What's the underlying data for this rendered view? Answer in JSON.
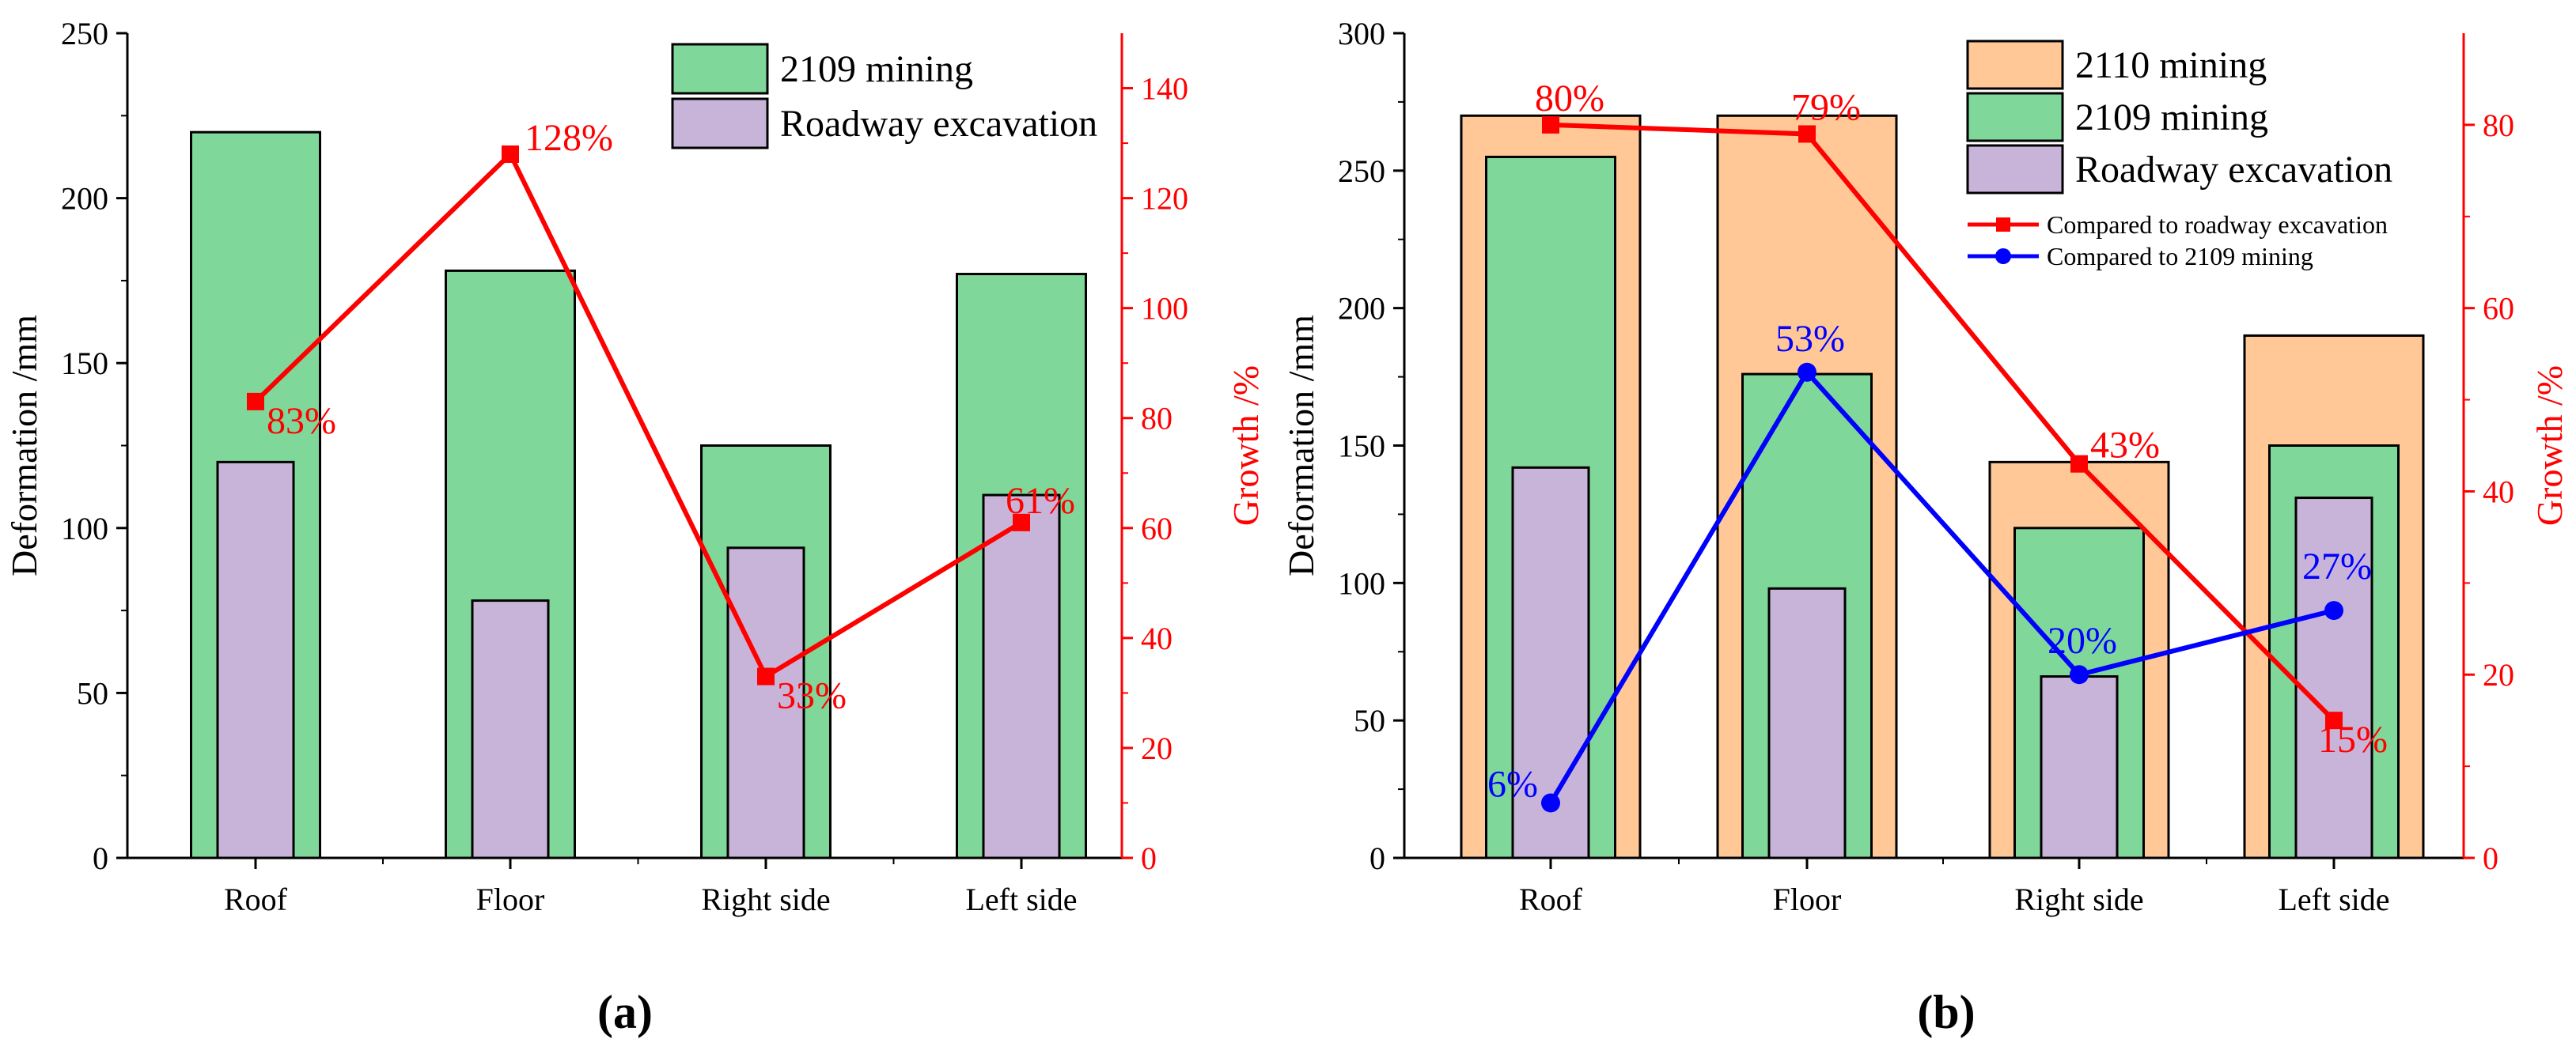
{
  "chart_data": [
    {
      "type": "bar",
      "panel_label": "(a)",
      "categories": [
        "Roof",
        "Floor",
        "Right side",
        "Left side"
      ],
      "ylabel": "Deformation /mm",
      "y2label": "Growth /%",
      "ylim": [
        0,
        250
      ],
      "y2lim": [
        0,
        150
      ],
      "yticks": [
        0,
        50,
        100,
        150,
        200,
        250
      ],
      "y2ticks": [
        0,
        20,
        40,
        60,
        80,
        100,
        120,
        140
      ],
      "legend_position": "top-right",
      "series": [
        {
          "name": "2109 mining",
          "values": [
            220,
            178,
            125,
            177
          ],
          "color": "#7fd89a"
        },
        {
          "name": "Roadway excavation",
          "values": [
            120,
            78,
            94,
            110
          ],
          "color": "#c8b4d8"
        }
      ],
      "lines": [
        {
          "name": "Growth",
          "values": [
            83,
            128,
            33,
            61
          ],
          "labels": [
            "83%",
            "128%",
            "33%",
            "61%"
          ],
          "color": "#ff0000",
          "marker": "square"
        }
      ]
    },
    {
      "type": "bar",
      "panel_label": "(b)",
      "categories": [
        "Roof",
        "Floor",
        "Right side",
        "Left side"
      ],
      "ylabel": "Deformation /mm",
      "y2label": "Growth /%",
      "ylim": [
        0,
        300
      ],
      "y2lim": [
        0,
        90
      ],
      "yticks": [
        0,
        50,
        100,
        150,
        200,
        250,
        300
      ],
      "y2ticks": [
        0,
        20,
        40,
        60,
        80
      ],
      "legend_position": "top-right",
      "series": [
        {
          "name": "2110 mining",
          "values": [
            270,
            270,
            144,
            190
          ],
          "color": "#ffc896"
        },
        {
          "name": "2109 mining",
          "values": [
            255,
            176,
            120,
            150
          ],
          "color": "#7fd89a"
        },
        {
          "name": "Roadway excavation",
          "values": [
            142,
            98,
            66,
            131
          ],
          "color": "#c8b4d8"
        }
      ],
      "lines": [
        {
          "name": "Compared to roadway excavation",
          "values": [
            80,
            79,
            43,
            15
          ],
          "labels": [
            "80%",
            "79%",
            "43%",
            "15%"
          ],
          "color": "#ff0000",
          "marker": "square"
        },
        {
          "name": "Compared to 2109 mining",
          "values": [
            6,
            53,
            20,
            27
          ],
          "labels": [
            "6%",
            "53%",
            "20%",
            "27%"
          ],
          "color": "#0000ff",
          "marker": "circle"
        }
      ]
    }
  ]
}
